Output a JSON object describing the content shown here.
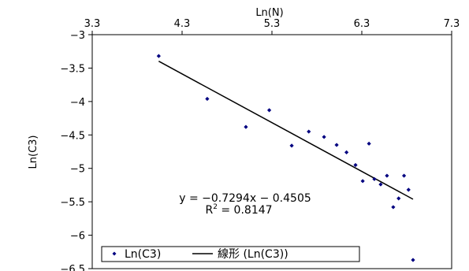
{
  "chart_data": {
    "type": "scatter",
    "title": "",
    "xlabel": "Ln(N)",
    "ylabel": "Ln(C3)",
    "x_axis_position": "top",
    "xlim": [
      3.3,
      7.3
    ],
    "ylim": [
      -6.5,
      -3.0
    ],
    "x_ticks": [
      "3.3",
      "4.3",
      "5.3",
      "6.3",
      "7.3"
    ],
    "y_ticks": [
      "-3",
      "-3.5",
      "-4",
      "-4.5",
      "-5",
      "-5.5",
      "-6",
      "-6.5"
    ],
    "grid": false,
    "series": [
      {
        "name": "Ln(C3)",
        "color": "#000080",
        "marker": "diamond",
        "points": [
          {
            "x": 4.04,
            "y": -3.32
          },
          {
            "x": 4.58,
            "y": -3.96
          },
          {
            "x": 5.01,
            "y": -4.38
          },
          {
            "x": 5.27,
            "y": -4.13
          },
          {
            "x": 5.52,
            "y": -4.66
          },
          {
            "x": 5.71,
            "y": -4.45
          },
          {
            "x": 5.88,
            "y": -4.53
          },
          {
            "x": 6.02,
            "y": -4.65
          },
          {
            "x": 6.13,
            "y": -4.76
          },
          {
            "x": 6.23,
            "y": -4.95
          },
          {
            "x": 6.31,
            "y": -5.19
          },
          {
            "x": 6.38,
            "y": -4.63
          },
          {
            "x": 6.44,
            "y": -5.16
          },
          {
            "x": 6.51,
            "y": -5.24
          },
          {
            "x": 6.58,
            "y": -5.11
          },
          {
            "x": 6.65,
            "y": -5.58
          },
          {
            "x": 6.71,
            "y": -5.45
          },
          {
            "x": 6.77,
            "y": -5.11
          },
          {
            "x": 6.82,
            "y": -5.32
          },
          {
            "x": 6.87,
            "y": -6.37
          }
        ]
      }
    ],
    "trendline": {
      "name": "線形 (Ln(C3))",
      "type": "linear",
      "slope": -0.7294,
      "intercept": -0.4505,
      "x_range": [
        4.04,
        6.87
      ],
      "equation": "y = −0.7294x − 0.4505",
      "r2_label": "R",
      "r2_value": " = 0.8147"
    },
    "legend": {
      "placement": "bottom-left",
      "entries": [
        "Ln(C3)",
        "線形 (Ln(C3))"
      ]
    }
  }
}
